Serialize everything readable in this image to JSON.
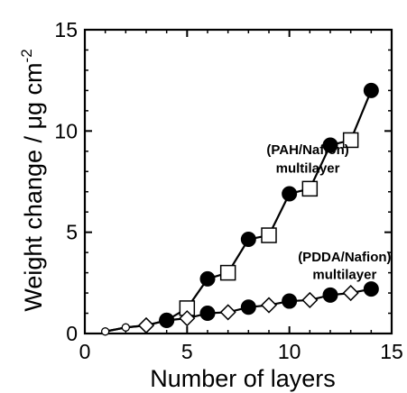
{
  "chart_data": {
    "type": "scatter",
    "xlabel": "Number of layers",
    "ylabel": "Weight change / μg cm",
    "ylabel_superscript": "-2",
    "xlim": [
      0,
      15
    ],
    "ylim": [
      0,
      15
    ],
    "xticks": [
      0,
      5,
      10,
      15
    ],
    "yticks": [
      0,
      5,
      10,
      15
    ],
    "grid": false,
    "legend": "none",
    "annotations": [
      {
        "text": "(PAH/Nafion)",
        "anchor_x": 10.9,
        "anchor_y": 8.85
      },
      {
        "text": "multilayer",
        "anchor_x": 10.9,
        "anchor_y": 7.95
      },
      {
        "text": "(PDDA/Nafion)",
        "anchor_x": 12.7,
        "anchor_y": 3.55
      },
      {
        "text": "multilayer",
        "anchor_x": 12.7,
        "anchor_y": 2.7
      }
    ],
    "series": [
      {
        "line_color": "#000000",
        "points": [
          {
            "x": 1,
            "y": 0.1,
            "marker": "small-circle-open"
          },
          {
            "x": 2,
            "y": 0.3,
            "marker": "small-circle-open"
          },
          {
            "x": 3,
            "y": 0.4,
            "marker": "diamond-open"
          },
          {
            "x": 4,
            "y": 0.65,
            "marker": "circle-filled"
          },
          {
            "x": 5,
            "y": 1.25,
            "marker": "square-open"
          },
          {
            "x": 6,
            "y": 2.7,
            "marker": "circle-filled"
          },
          {
            "x": 7,
            "y": 3.0,
            "marker": "square-open"
          },
          {
            "x": 8,
            "y": 4.65,
            "marker": "circle-filled"
          },
          {
            "x": 9,
            "y": 4.85,
            "marker": "square-open"
          },
          {
            "x": 10,
            "y": 6.9,
            "marker": "circle-filled"
          },
          {
            "x": 11,
            "y": 7.15,
            "marker": "square-open"
          },
          {
            "x": 12,
            "y": 9.3,
            "marker": "circle-filled"
          },
          {
            "x": 13,
            "y": 9.55,
            "marker": "square-open"
          },
          {
            "x": 14,
            "y": 12.0,
            "marker": "circle-filled"
          }
        ]
      },
      {
        "line_color": "#000000",
        "points": [
          {
            "x": 1,
            "y": 0.1,
            "marker": "small-circle-open"
          },
          {
            "x": 2,
            "y": 0.3,
            "marker": "small-circle-open"
          },
          {
            "x": 3,
            "y": 0.4,
            "marker": "diamond-open"
          },
          {
            "x": 4,
            "y": 0.65,
            "marker": "circle-filled"
          },
          {
            "x": 5,
            "y": 0.75,
            "marker": "diamond-open"
          },
          {
            "x": 6,
            "y": 1.0,
            "marker": "circle-filled"
          },
          {
            "x": 7,
            "y": 1.05,
            "marker": "diamond-open"
          },
          {
            "x": 8,
            "y": 1.3,
            "marker": "circle-filled"
          },
          {
            "x": 9,
            "y": 1.4,
            "marker": "diamond-open"
          },
          {
            "x": 10,
            "y": 1.6,
            "marker": "circle-filled"
          },
          {
            "x": 11,
            "y": 1.65,
            "marker": "diamond-open"
          },
          {
            "x": 12,
            "y": 1.9,
            "marker": "circle-filled"
          },
          {
            "x": 13,
            "y": 2.0,
            "marker": "diamond-open"
          },
          {
            "x": 14,
            "y": 2.2,
            "marker": "circle-filled"
          }
        ]
      }
    ]
  }
}
